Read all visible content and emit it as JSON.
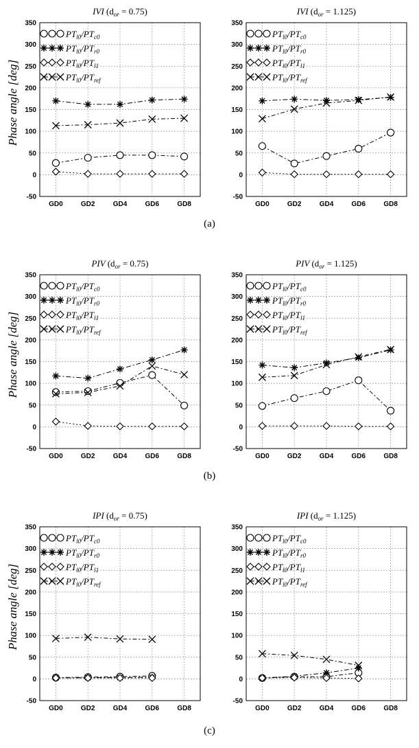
{
  "figure": {
    "captions": [
      "(a)",
      "(b)",
      "(c)"
    ],
    "legend_glyphs": {
      "circle": "circle",
      "star": "asterisk",
      "diamond": "diamond",
      "cross": "x-cross"
    }
  },
  "chart_data": [
    {
      "type": "line",
      "title_main": "IVI",
      "title_param": "(d",
      "title_sub": "or",
      "title_value": " = 0.75)",
      "ylabel": "Phase angle [deg]",
      "ylim": [
        -50,
        350
      ],
      "yticks": [
        "-50",
        "0",
        "50",
        "100",
        "150",
        "200",
        "250",
        "300",
        "350"
      ],
      "categories": [
        "GD0",
        "GD2",
        "GD4",
        "GD6",
        "GD8"
      ],
      "grid": true,
      "legend_position": "top-left",
      "series": [
        {
          "name": "PT_l0/PT_c0",
          "marker": "circle",
          "values": [
            27,
            39,
            45,
            45,
            42
          ]
        },
        {
          "name": "PT_l0/PT_r0",
          "marker": "star",
          "values": [
            170,
            162,
            162,
            172,
            174
          ]
        },
        {
          "name": "PT_l0/PT_l1",
          "marker": "diamond",
          "values": [
            7,
            2,
            2,
            2,
            2
          ]
        },
        {
          "name": "PT_l0/PT_ref",
          "marker": "cross",
          "values": [
            113,
            115,
            119,
            128,
            130
          ]
        }
      ]
    },
    {
      "type": "line",
      "title_main": "IVI",
      "title_param": "(d",
      "title_sub": "or",
      "title_value": " = 1.125)",
      "ylabel": "",
      "ylim": [
        -50,
        350
      ],
      "yticks": [
        "-50",
        "0",
        "50",
        "100",
        "150",
        "200",
        "250",
        "300",
        "350"
      ],
      "categories": [
        "GD0",
        "GD2",
        "GD4",
        "GD6",
        "GD8"
      ],
      "grid": true,
      "legend_position": "top-left",
      "series": [
        {
          "name": "PT_l0/PT_c0",
          "marker": "circle",
          "values": [
            66,
            26,
            43,
            60,
            97
          ]
        },
        {
          "name": "PT_l0/PT_r0",
          "marker": "star",
          "values": [
            170,
            174,
            171,
            173,
            178
          ]
        },
        {
          "name": "PT_l0/PT_l1",
          "marker": "diamond",
          "values": [
            5,
            1,
            1,
            1,
            1
          ]
        },
        {
          "name": "PT_l0/PT_ref",
          "marker": "cross",
          "values": [
            129,
            151,
            165,
            171,
            179
          ]
        }
      ]
    },
    {
      "type": "line",
      "title_main": "PIV",
      "title_param": "(d",
      "title_sub": "or",
      "title_value": " = 0.75)",
      "ylabel": "Phase angle [deg]",
      "ylim": [
        -50,
        350
      ],
      "yticks": [
        "-50",
        "0",
        "50",
        "100",
        "150",
        "200",
        "250",
        "300",
        "350"
      ],
      "categories": [
        "GD0",
        "GD2",
        "GD4",
        "GD6",
        "GD8"
      ],
      "grid": true,
      "legend_position": "top-left",
      "series": [
        {
          "name": "PT_l0/PT_c0",
          "marker": "circle",
          "values": [
            80,
            82,
            101,
            119,
            49
          ]
        },
        {
          "name": "PT_l0/PT_r0",
          "marker": "star",
          "values": [
            117,
            112,
            133,
            154,
            177
          ]
        },
        {
          "name": "PT_l0/PT_l1",
          "marker": "diamond",
          "values": [
            12,
            2,
            1,
            1,
            1
          ]
        },
        {
          "name": "PT_l0/PT_ref",
          "marker": "cross",
          "values": [
            76,
            79,
            94,
            140,
            120
          ]
        }
      ]
    },
    {
      "type": "line",
      "title_main": "PIV",
      "title_param": "(d",
      "title_sub": "or",
      "title_value": " = 1.125)",
      "ylabel": "",
      "ylim": [
        -50,
        350
      ],
      "yticks": [
        "-50",
        "0",
        "50",
        "100",
        "150",
        "200",
        "250",
        "300",
        "350"
      ],
      "categories": [
        "GD0",
        "GD2",
        "GD4",
        "GD6",
        "GD8"
      ],
      "grid": true,
      "legend_position": "top-left",
      "series": [
        {
          "name": "PT_l0/PT_c0",
          "marker": "circle",
          "values": [
            48,
            66,
            82,
            107,
            37
          ]
        },
        {
          "name": "PT_l0/PT_r0",
          "marker": "star",
          "values": [
            142,
            136,
            147,
            159,
            177
          ]
        },
        {
          "name": "PT_l0/PT_l1",
          "marker": "diamond",
          "values": [
            2,
            2,
            2,
            1,
            1
          ]
        },
        {
          "name": "PT_l0/PT_ref",
          "marker": "cross",
          "values": [
            114,
            118,
            143,
            161,
            178
          ]
        }
      ]
    },
    {
      "type": "line",
      "title_main": "IPI",
      "title_param": "(d",
      "title_sub": "or",
      "title_value": " = 0.75)",
      "ylabel": "Phase angle [deg]",
      "ylim": [
        -50,
        350
      ],
      "yticks": [
        "-50",
        "0",
        "50",
        "100",
        "150",
        "200",
        "250",
        "300",
        "350"
      ],
      "categories": [
        "GD0",
        "GD2",
        "GD4",
        "GD6",
        "GD8"
      ],
      "grid": true,
      "legend_position": "top-left",
      "series": [
        {
          "name": "PT_l0/PT_c0",
          "marker": "circle",
          "values": [
            3,
            4,
            5,
            7,
            null
          ]
        },
        {
          "name": "PT_l0/PT_r0",
          "marker": "star",
          "values": [
            2,
            3,
            3,
            4,
            null
          ]
        },
        {
          "name": "PT_l0/PT_l1",
          "marker": "diamond",
          "values": [
            2,
            2,
            2,
            2,
            null
          ]
        },
        {
          "name": "PT_l0/PT_ref",
          "marker": "cross",
          "values": [
            93,
            96,
            92,
            91,
            null
          ]
        }
      ]
    },
    {
      "type": "line",
      "title_main": "IPI",
      "title_param": "(d",
      "title_sub": "or",
      "title_value": " = 1.125)",
      "ylabel": "",
      "ylim": [
        -50,
        350
      ],
      "yticks": [
        "-50",
        "0",
        "50",
        "100",
        "150",
        "200",
        "250",
        "300",
        "350"
      ],
      "categories": [
        "GD0",
        "GD2",
        "GD4",
        "GD6",
        "GD8"
      ],
      "grid": true,
      "legend_position": "top-left",
      "series": [
        {
          "name": "PT_l0/PT_c0",
          "marker": "circle",
          "values": [
            2,
            5,
            5,
            14,
            null
          ]
        },
        {
          "name": "PT_l0/PT_r0",
          "marker": "star",
          "values": [
            2,
            6,
            14,
            25,
            null
          ]
        },
        {
          "name": "PT_l0/PT_l1",
          "marker": "diamond",
          "values": [
            2,
            3,
            2,
            1,
            null
          ]
        },
        {
          "name": "PT_l0/PT_ref",
          "marker": "cross",
          "values": [
            58,
            54,
            45,
            31,
            null
          ]
        }
      ]
    }
  ]
}
